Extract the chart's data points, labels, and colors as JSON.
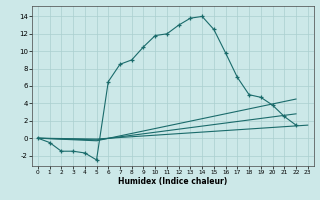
{
  "xlabel": "Humidex (Indice chaleur)",
  "background_color": "#cce8e8",
  "grid_color": "#aacfcf",
  "line_color": "#1a6b6b",
  "xlim": [
    -0.5,
    23.5
  ],
  "ylim": [
    -3.2,
    15.2
  ],
  "xticks": [
    0,
    1,
    2,
    3,
    4,
    5,
    6,
    7,
    8,
    9,
    10,
    11,
    12,
    13,
    14,
    15,
    16,
    17,
    18,
    19,
    20,
    21,
    22,
    23
  ],
  "yticks": [
    -2,
    0,
    2,
    4,
    6,
    8,
    10,
    12,
    14
  ],
  "curve1_x": [
    0,
    1,
    2,
    3,
    4,
    5,
    6,
    7,
    8,
    9,
    10,
    11,
    12,
    13,
    14,
    15,
    16,
    17,
    18,
    19,
    20,
    21,
    22
  ],
  "curve1_y": [
    0,
    -0.5,
    -1.5,
    -1.5,
    -1.7,
    -2.5,
    6.5,
    8.5,
    9.0,
    10.5,
    11.8,
    12.0,
    13.0,
    13.8,
    14.0,
    12.5,
    9.8,
    7.0,
    5.0,
    4.7,
    3.8,
    2.5,
    1.5
  ],
  "curve2_x": [
    0,
    5,
    22
  ],
  "curve2_y": [
    0,
    -0.3,
    4.5
  ],
  "curve3_x": [
    0,
    5,
    22
  ],
  "curve3_y": [
    0,
    -0.2,
    2.8
  ],
  "curve4_x": [
    0,
    5,
    23
  ],
  "curve4_y": [
    0,
    -0.1,
    1.5
  ]
}
